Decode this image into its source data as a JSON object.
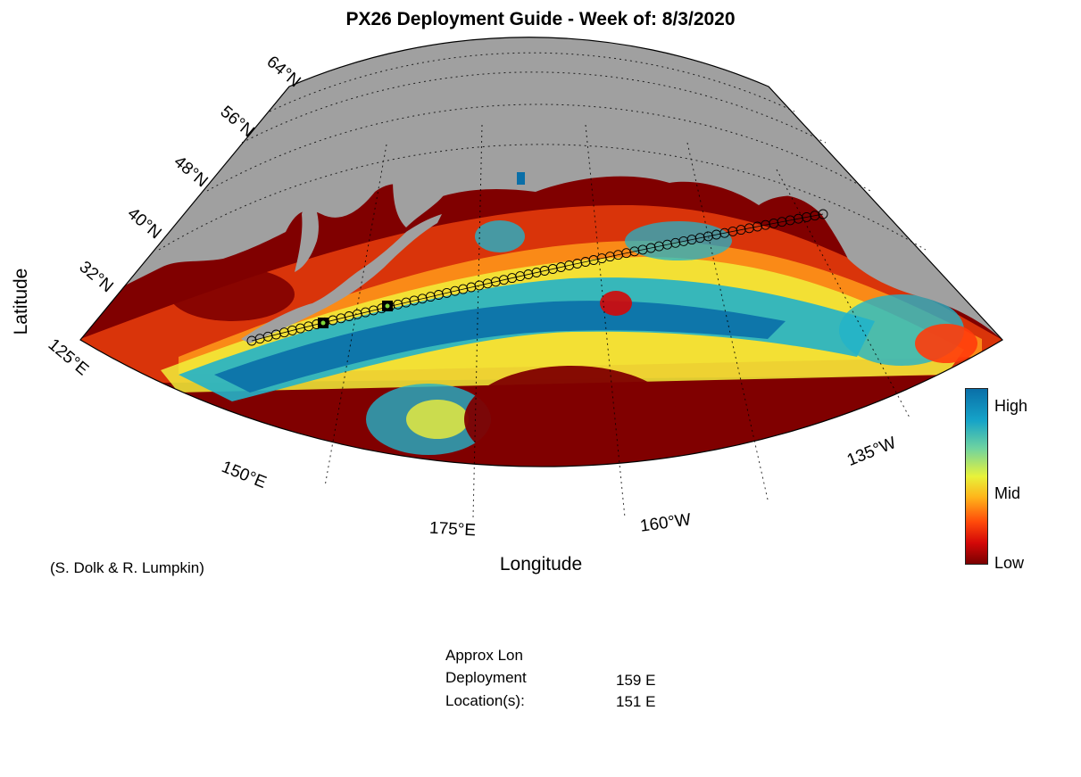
{
  "title": "PX26 Deployment Guide - Week of: 8/3/2020",
  "axes": {
    "xlabel": "Longitude",
    "ylabel": "Latitude",
    "lat_ticks": [
      "32°N",
      "40°N",
      "48°N",
      "56°N",
      "64°N"
    ],
    "lon_ticks": [
      "125°E",
      "150°E",
      "175°E",
      "160°W",
      "135°W"
    ]
  },
  "map": {
    "projection": "conic",
    "lon_range": [
      125,
      235
    ],
    "lat_range": [
      20,
      66
    ],
    "land_color": "#a0a0a0",
    "field_colormap": "jet",
    "field_low_color": "#800000",
    "field_high_color": "#0a6fa8",
    "track_marker": "open-circle",
    "deployment_marker": "filled-square-black",
    "deployment_markers_count": 2
  },
  "colorbar": {
    "labels": {
      "high": "High",
      "mid": "Mid",
      "low": "Low"
    }
  },
  "credit": "(S. Dolk & R. Lumpkin)",
  "info": {
    "line1": "Approx Lon",
    "line2": "Deployment",
    "line3": "Location(s):",
    "values": [
      "159 E",
      "151 E"
    ]
  }
}
